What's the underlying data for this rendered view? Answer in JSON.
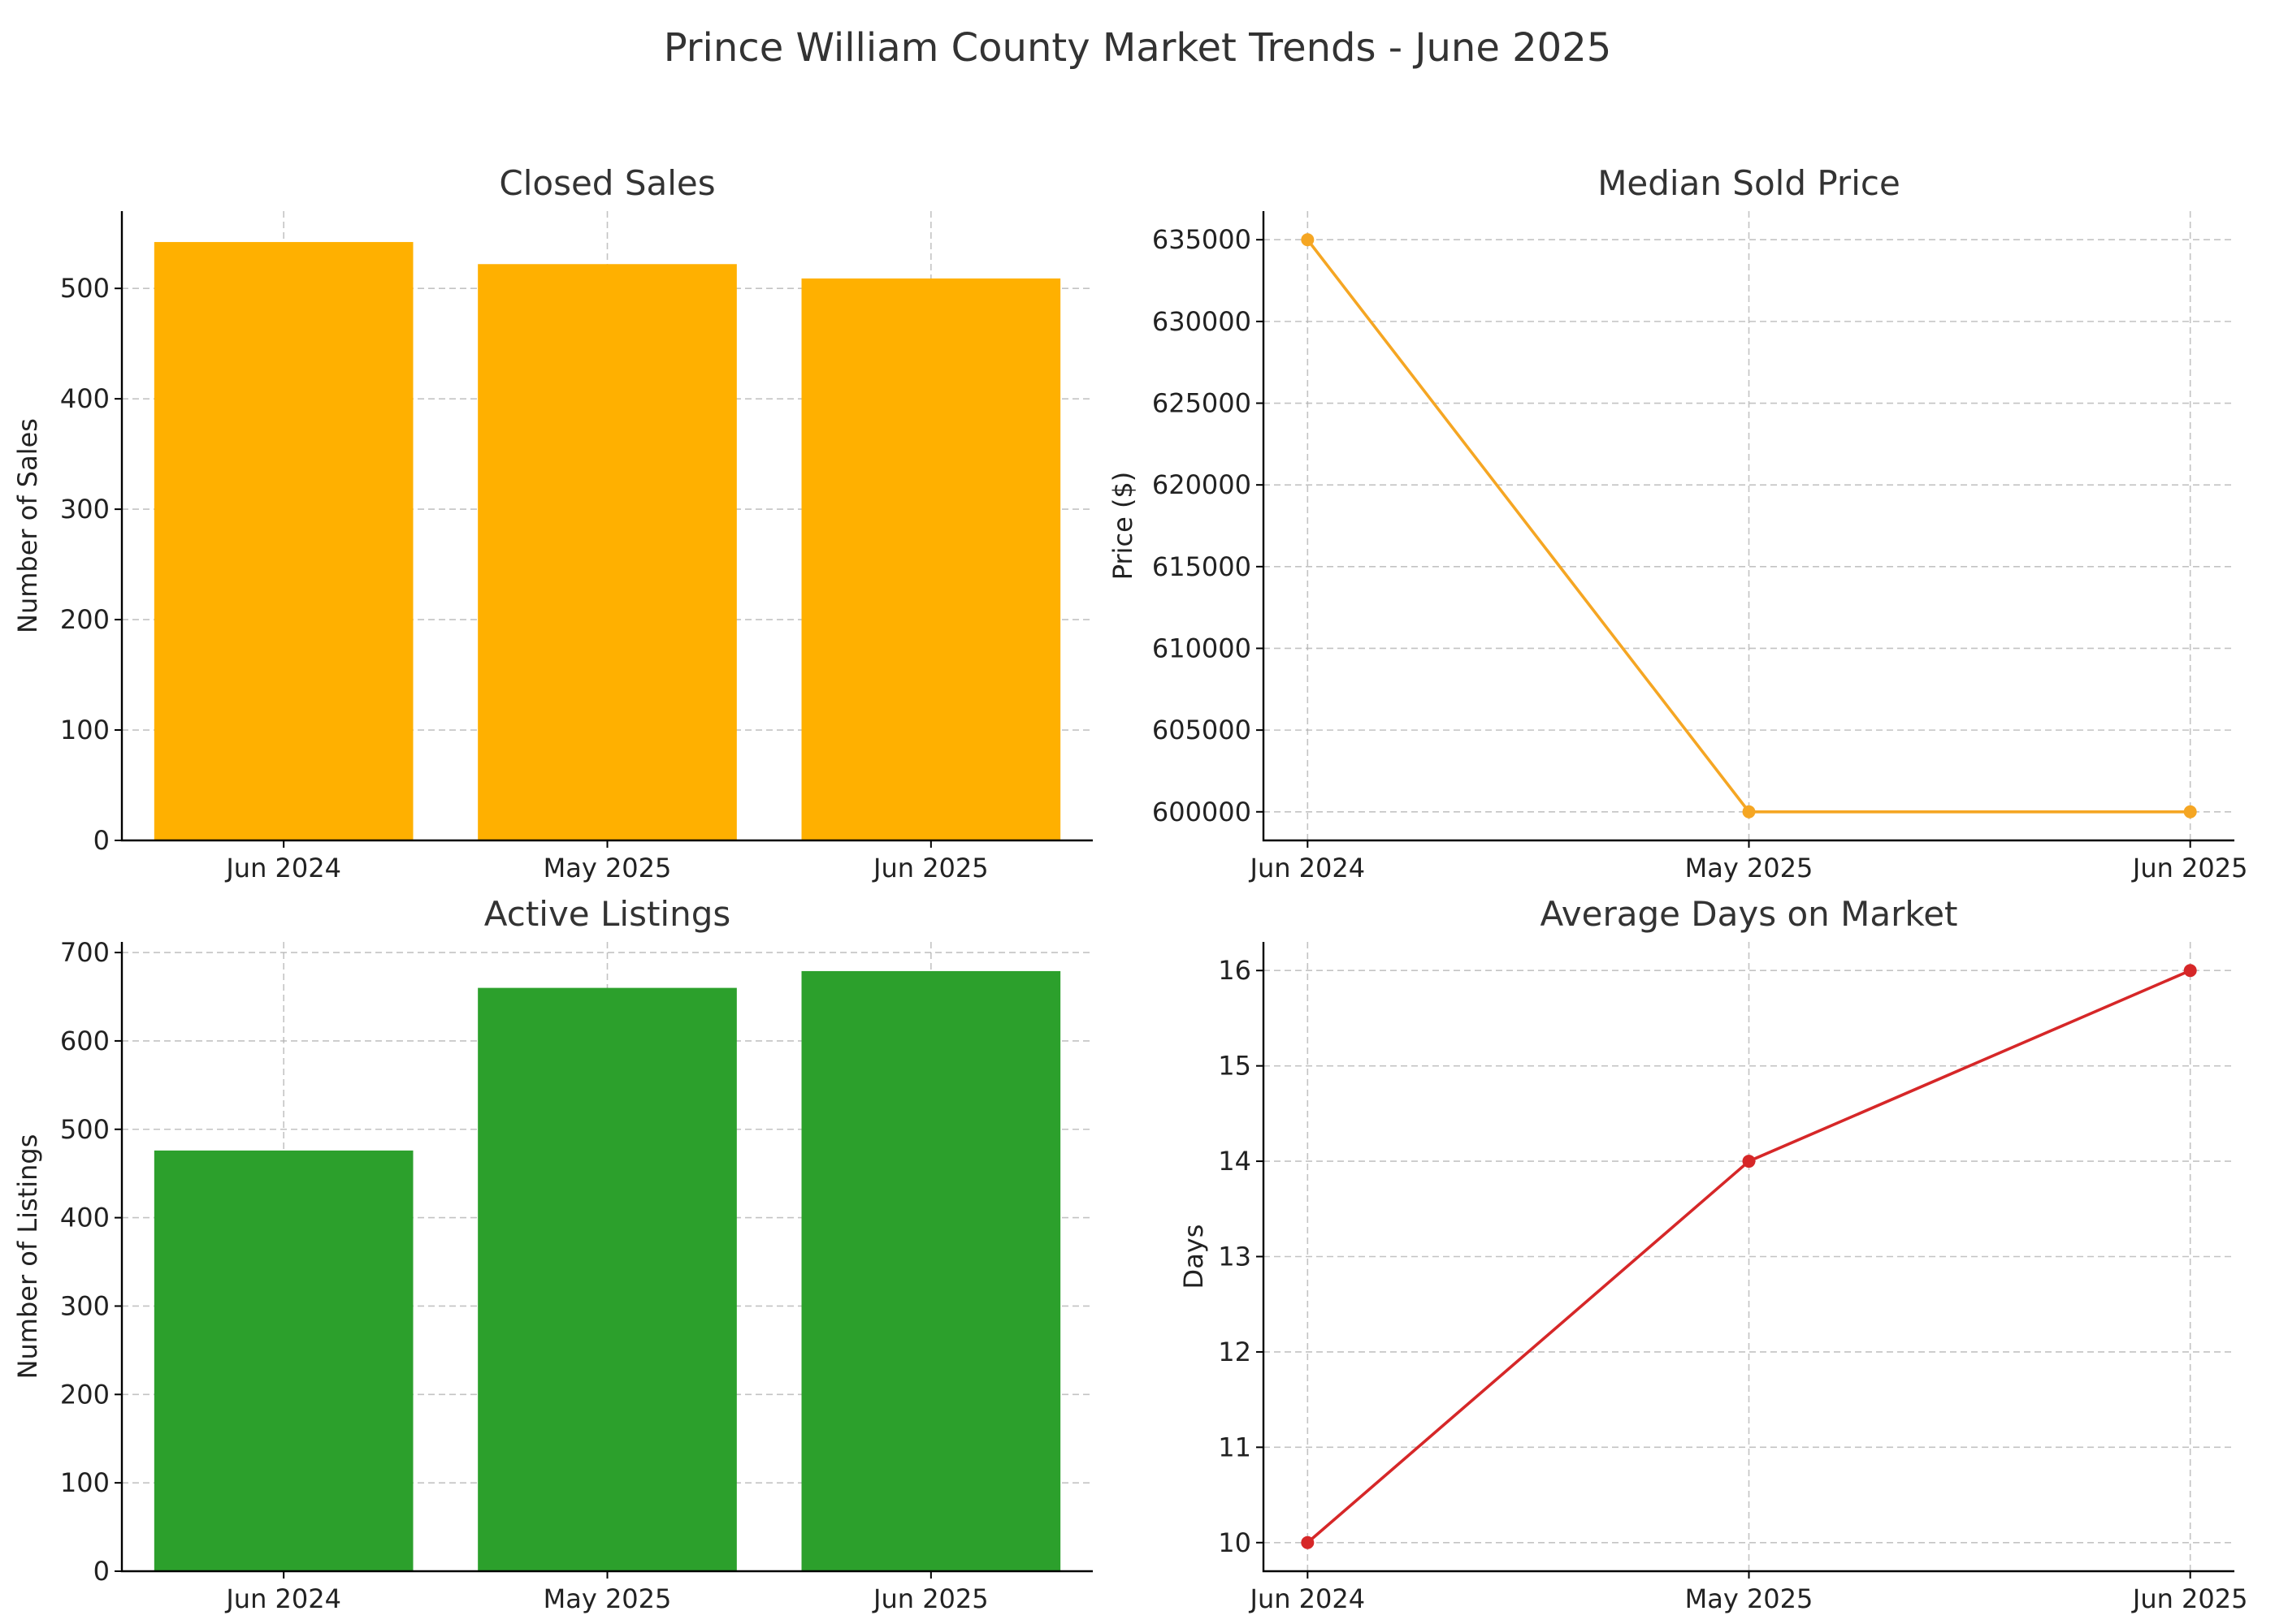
{
  "figure": {
    "title": "Prince William County Market Trends - June 2025"
  },
  "chart_data": [
    {
      "type": "bar",
      "title": "Closed Sales",
      "xlabel": "",
      "ylabel": "Number of Sales",
      "categories": [
        "Jun 2024",
        "May 2025",
        "Jun 2025"
      ],
      "values": [
        542,
        522,
        509
      ],
      "ylim": [
        0,
        570
      ],
      "yticks": [
        0,
        100,
        200,
        300,
        400,
        500
      ],
      "color": "#FFB000",
      "grid": true,
      "legend": "none"
    },
    {
      "type": "line",
      "title": "Median Sold Price",
      "xlabel": "",
      "ylabel": "Price ($)",
      "categories": [
        "Jun 2024",
        "May 2025",
        "Jun 2025"
      ],
      "values": [
        635000,
        600000,
        600000
      ],
      "ylim": [
        598250,
        636750
      ],
      "yticks": [
        600000,
        605000,
        610000,
        615000,
        620000,
        625000,
        630000,
        635000
      ],
      "color": "#F5A623",
      "marker": "circle",
      "grid": true,
      "legend": "none"
    },
    {
      "type": "bar",
      "title": "Active Listings",
      "xlabel": "",
      "ylabel": "Number of Listings",
      "categories": [
        "Jun 2024",
        "May 2025",
        "Jun 2025"
      ],
      "values": [
        476,
        660,
        679
      ],
      "ylim": [
        0,
        712
      ],
      "yticks": [
        0,
        100,
        200,
        300,
        400,
        500,
        600,
        700
      ],
      "color": "#2CA02C",
      "grid": true,
      "legend": "none"
    },
    {
      "type": "line",
      "title": "Average Days on Market",
      "xlabel": "",
      "ylabel": "Days",
      "categories": [
        "Jun 2024",
        "May 2025",
        "Jun 2025"
      ],
      "values": [
        10,
        14,
        16
      ],
      "ylim": [
        9.7,
        16.3
      ],
      "yticks": [
        10,
        11,
        12,
        13,
        14,
        15,
        16
      ],
      "color": "#D62728",
      "marker": "circle",
      "grid": true,
      "legend": "none"
    }
  ]
}
